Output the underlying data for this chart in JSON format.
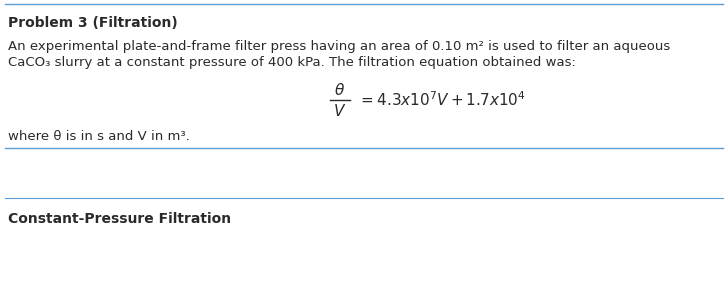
{
  "title": "Problem 3 (Filtration)",
  "body_line1": "An experimental plate-and-frame filter press having an area of 0.10 m² is used to filter an aqueous",
  "body_line2": "CaCO₃ slurry at a constant pressure of 400 kPa. The filtration equation obtained was:",
  "where_text": "where θ is in s and V in m³.",
  "bottom_label": "Constant-Pressure Filtration",
  "bg_color": "#ffffff",
  "text_color": "#2a2a2a",
  "line_color": "#5b9bd5",
  "font_size_title": 10,
  "font_size_body": 9.5,
  "font_size_eq": 11
}
